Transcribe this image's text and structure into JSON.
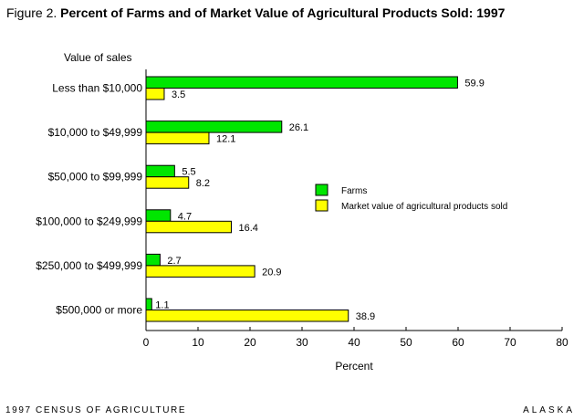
{
  "figure": {
    "label": "Figure 2.",
    "title": "Percent of Farms and of Market Value of Agricultural Products Sold: 1997"
  },
  "footer": {
    "left": "1997 CENSUS OF AGRICULTURE",
    "right": "ALASKA"
  },
  "chart_data": {
    "type": "bar",
    "orientation": "horizontal",
    "title": "Percent of Farms and of Market Value of Agricultural Products Sold: 1997",
    "ylabel": "Value of sales",
    "xlabel": "Percent",
    "categories": [
      "Less than  $10,000",
      "$10,000 to $49,999",
      "$50,000 to $99,999",
      "$100,000 to $249,999",
      "$250,000 to $499,999",
      "$500,000 or more"
    ],
    "series": [
      {
        "name": "Farms",
        "color": "#00e600",
        "values": [
          59.9,
          26.1,
          5.5,
          4.7,
          2.7,
          1.1
        ],
        "labels": [
          "59.9",
          "26.1",
          "5.5",
          "4.7",
          "2.7",
          "1.1"
        ]
      },
      {
        "name": "Market value of agricultural products sold",
        "color": "#ffff00",
        "values": [
          3.5,
          12.1,
          8.2,
          16.4,
          20.9,
          38.9
        ],
        "labels": [
          "3.5",
          "12.1",
          "8.2",
          "16.4",
          "20.9",
          "38.9"
        ]
      }
    ],
    "xlim": [
      0,
      80
    ],
    "xticks": [
      0,
      10,
      20,
      30,
      40,
      50,
      60,
      70,
      80
    ],
    "grid": false,
    "legend_position": "right"
  }
}
